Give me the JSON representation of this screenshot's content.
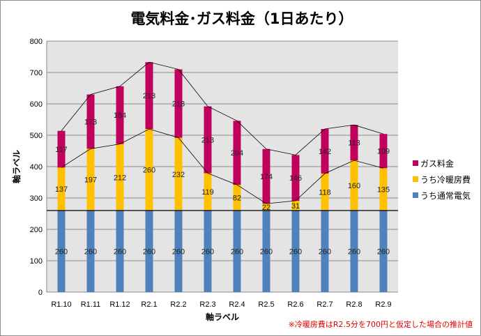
{
  "chart_data": {
    "type": "bar",
    "stacked": true,
    "title": "電気料金･ガス料金（1日あたり）",
    "xlabel": "軸ラベル",
    "ylabel": "軸ラベル",
    "ylim": [
      0,
      800
    ],
    "yticks": [
      0,
      100,
      200,
      300,
      400,
      500,
      600,
      700,
      800
    ],
    "grid": true,
    "legend_position": "right",
    "categories": [
      "R1.10",
      "R1.11",
      "R1.12",
      "R2.1",
      "R2.2",
      "R2.3",
      "R2.4",
      "R2.5",
      "R2.6",
      "R2.7",
      "R2.8",
      "R2.9"
    ],
    "series": [
      {
        "name": "うち通常電気",
        "color": "#4f81bd",
        "values": [
          260,
          260,
          260,
          260,
          260,
          260,
          260,
          260,
          260,
          260,
          260,
          260
        ]
      },
      {
        "name": "うち冷暖房費",
        "color": "#ffc000",
        "values": [
          137,
          197,
          212,
          260,
          232,
          119,
          82,
          22,
          31,
          118,
          160,
          135
        ]
      },
      {
        "name": "ガス料金",
        "color": "#c0005c",
        "values": [
          117,
          173,
          184,
          213,
          218,
          213,
          204,
          174,
          146,
          142,
          113,
          109
        ]
      }
    ],
    "note": "※冷暖房費はR2.5分を700円と仮定した場合の推計値"
  }
}
